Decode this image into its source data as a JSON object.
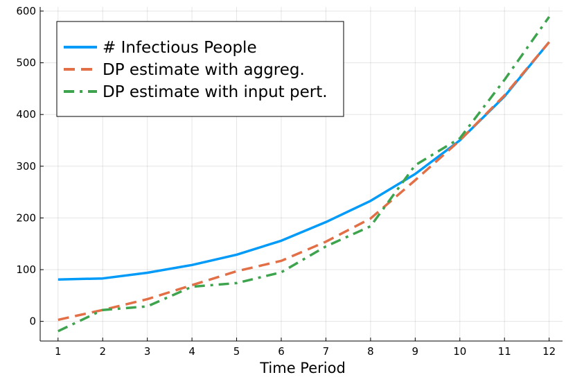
{
  "chart_data": {
    "type": "line",
    "title": "",
    "xlabel": "Time Period",
    "ylabel": "",
    "x": [
      1,
      2,
      3,
      4,
      5,
      6,
      7,
      8,
      9,
      10,
      11,
      12
    ],
    "xlim": [
      0.6,
      12.3
    ],
    "ylim": [
      -38,
      608
    ],
    "xticks": [
      1,
      2,
      3,
      4,
      5,
      6,
      7,
      8,
      9,
      10,
      11,
      12
    ],
    "yticks": [
      0,
      100,
      200,
      300,
      400,
      500,
      600
    ],
    "grid": true,
    "legend_position": "top-left",
    "series": [
      {
        "name": "# Infectious People",
        "color": "#009af9",
        "style": "solid",
        "values": [
          81,
          83,
          94,
          109,
          129,
          156,
          192,
          233,
          285,
          350,
          435,
          540
        ]
      },
      {
        "name": "DP estimate with aggreg.",
        "color": "#e26f46",
        "style": "dashed",
        "values": [
          3,
          22,
          43,
          70,
          97,
          117,
          154,
          199,
          273,
          350,
          437,
          540
        ]
      },
      {
        "name": "DP estimate with input pert.",
        "color": "#3da44d",
        "style": "dashdot",
        "values": [
          -19,
          22,
          29,
          67,
          74,
          95,
          145,
          184,
          302,
          354,
          467,
          589
        ]
      }
    ]
  }
}
